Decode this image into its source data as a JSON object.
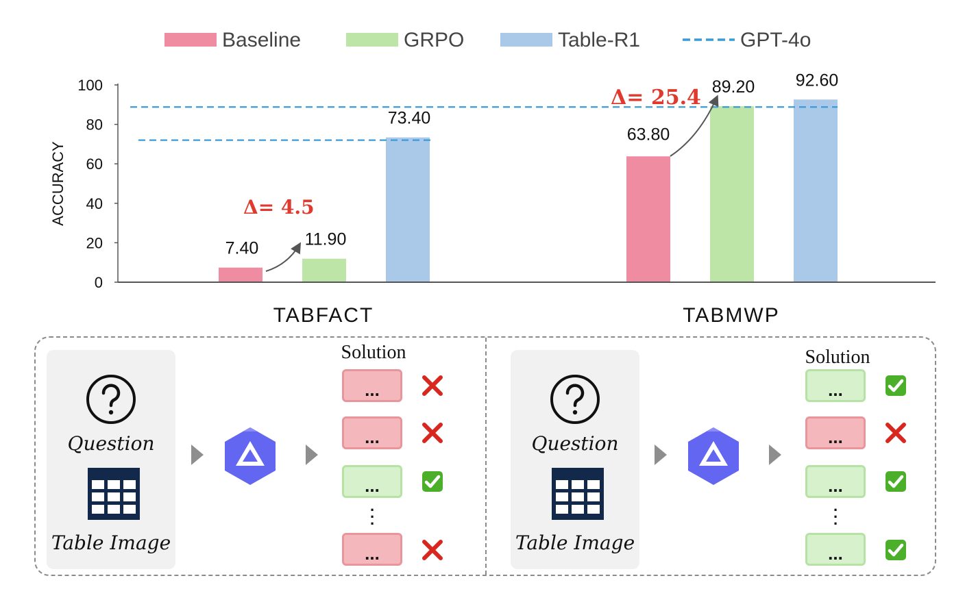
{
  "chart_data": {
    "type": "bar",
    "legend": [
      "Baseline",
      "GRPO",
      "Table-R1",
      "GPT-4o"
    ],
    "legend_position": "top",
    "ylabel": "ACCURACY",
    "ylim": [
      0,
      100
    ],
    "yticks": [
      0,
      20,
      40,
      60,
      80,
      100
    ],
    "categories": [
      "TABFACT",
      "TABMWP"
    ],
    "series": [
      {
        "name": "Baseline",
        "color": "#ef8ca2",
        "values": [
          7.4,
          63.8
        ],
        "labels": [
          "7.40",
          "63.80"
        ]
      },
      {
        "name": "GRPO",
        "color": "#bde5a7",
        "values": [
          11.9,
          89.2
        ],
        "labels": [
          "11.90",
          "89.20"
        ]
      },
      {
        "name": "Table-R1",
        "color": "#aac8e8",
        "values": [
          73.4,
          92.6
        ],
        "labels": [
          "73.40",
          "92.60"
        ]
      }
    ],
    "reference_lines": [
      {
        "name": "GPT-4o",
        "color": "#3c9bd6",
        "style": "dashed",
        "values": [
          72.0,
          88.8
        ]
      }
    ],
    "annotations": [
      "Δ= 4.5",
      "Δ= 25.4"
    ],
    "annotation_color": "#e03a2e",
    "grid": false
  },
  "panels": [
    {
      "question_label": "Question",
      "table_label": "Table Image",
      "solution_title": "Solution",
      "box_text": "...",
      "results": [
        "wrong",
        "wrong",
        "correct",
        "wrong"
      ]
    },
    {
      "question_label": "Question",
      "table_label": "Table Image",
      "solution_title": "Solution",
      "box_text": "...",
      "results": [
        "correct",
        "wrong",
        "correct",
        "correct"
      ]
    }
  ],
  "icons": {
    "question": "question-circle-icon",
    "table": "table-grid-icon",
    "model": "model-logo-icon",
    "correct": "check-box-icon",
    "wrong": "red-x-icon"
  },
  "colors": {
    "wrong_mark": "#d8271e",
    "correct_mark": "#4caf2a",
    "table_icon": "#13294b",
    "model_icon": "#6366f1"
  }
}
